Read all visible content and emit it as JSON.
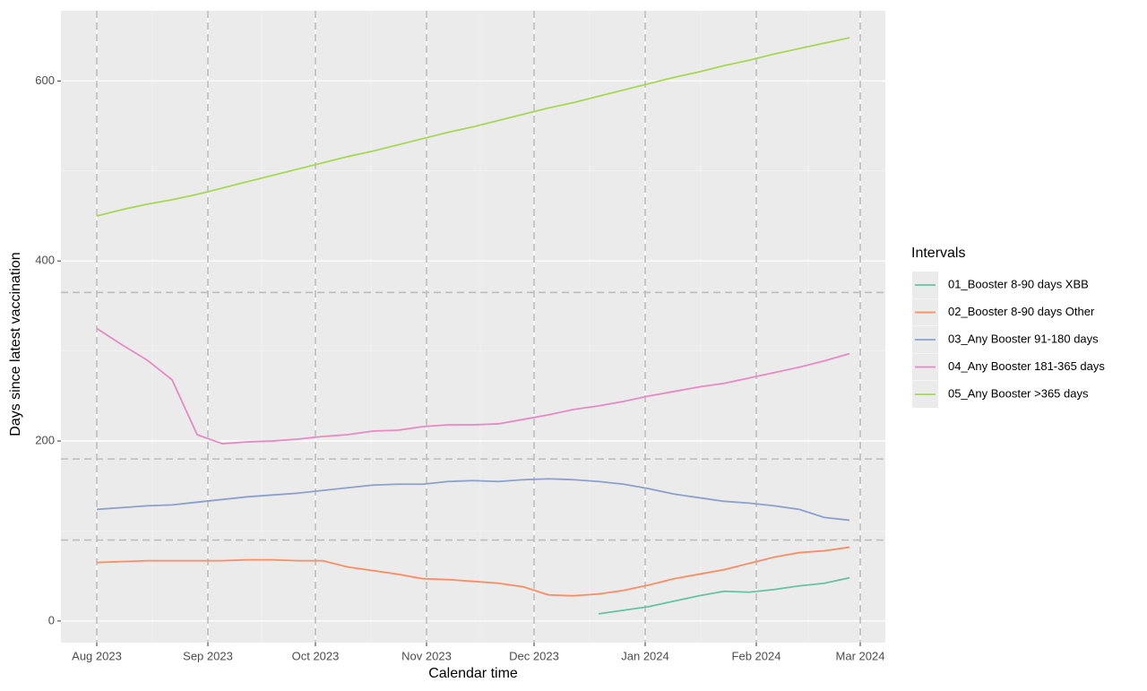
{
  "chart_data": {
    "type": "line",
    "x_label": "Calendar time",
    "y_label": "Days since latest vaccination",
    "legend_title": "Intervals",
    "legend_position": "right",
    "grid": true,
    "xlim": [
      "2023-07-22",
      "2024-03-08"
    ],
    "ylim": [
      -24,
      678
    ],
    "xticks": [
      {
        "value": "2023-08-01",
        "label": "Aug 2023"
      },
      {
        "value": "2023-09-01",
        "label": "Sep 2023"
      },
      {
        "value": "2023-10-01",
        "label": "Oct 2023"
      },
      {
        "value": "2023-11-01",
        "label": "Nov 2023"
      },
      {
        "value": "2023-12-01",
        "label": "Dec 2023"
      },
      {
        "value": "2024-01-01",
        "label": "Jan 2024"
      },
      {
        "value": "2024-02-01",
        "label": "Feb 2024"
      },
      {
        "value": "2024-03-01",
        "label": "Mar 2024"
      }
    ],
    "yticks": [
      0,
      200,
      400,
      600
    ],
    "hlines": [
      90,
      180,
      365
    ],
    "vlines": [
      "2023-08-01",
      "2023-09-01",
      "2023-10-01",
      "2023-11-01",
      "2023-12-01",
      "2024-01-01",
      "2024-02-01",
      "2024-03-01"
    ],
    "x": [
      "2023-08-01",
      "2023-08-08",
      "2023-08-15",
      "2023-08-22",
      "2023-08-29",
      "2023-09-05",
      "2023-09-12",
      "2023-09-19",
      "2023-09-26",
      "2023-10-03",
      "2023-10-10",
      "2023-10-17",
      "2023-10-24",
      "2023-10-31",
      "2023-11-07",
      "2023-11-14",
      "2023-11-21",
      "2023-11-28",
      "2023-12-05",
      "2023-12-12",
      "2023-12-19",
      "2023-12-26",
      "2024-01-02",
      "2024-01-09",
      "2024-01-16",
      "2024-01-23",
      "2024-01-30",
      "2024-02-06",
      "2024-02-13",
      "2024-02-20",
      "2024-02-27"
    ],
    "series": [
      {
        "name": "01_Booster 8-90 days XBB",
        "color": "#66c2a5",
        "values": [
          null,
          null,
          null,
          null,
          null,
          null,
          null,
          null,
          null,
          null,
          null,
          null,
          null,
          null,
          null,
          null,
          null,
          null,
          null,
          null,
          8,
          12,
          16,
          22,
          28,
          33,
          32,
          35,
          39,
          42,
          48
        ]
      },
      {
        "name": "02_Booster 8-90 days Other",
        "color": "#fc8d62",
        "values": [
          65,
          66,
          67,
          67,
          67,
          67,
          68,
          68,
          67,
          67,
          60,
          56,
          52,
          47,
          46,
          44,
          42,
          38,
          29,
          28,
          30,
          34,
          40,
          47,
          52,
          57,
          64,
          71,
          76,
          78,
          82
        ]
      },
      {
        "name": "03_Any Booster 91-180 days",
        "color": "#8da0cb",
        "values": [
          124,
          126,
          128,
          129,
          132,
          135,
          138,
          140,
          142,
          145,
          148,
          151,
          152,
          152,
          155,
          156,
          155,
          157,
          158,
          157,
          155,
          152,
          147,
          141,
          137,
          133,
          131,
          128,
          124,
          115,
          112
        ]
      },
      {
        "name": "04_Any Booster 181-365 days",
        "color": "#e78ac3",
        "values": [
          325,
          307,
          290,
          268,
          207,
          197,
          199,
          200,
          202,
          205,
          207,
          211,
          212,
          216,
          218,
          218,
          219,
          224,
          229,
          235,
          239,
          244,
          250,
          255,
          260,
          264,
          270,
          276,
          282,
          289,
          297
        ]
      },
      {
        "name": "05_Any Booster >365 days",
        "color": "#a6d854",
        "values": [
          450,
          457,
          463,
          468,
          474,
          481,
          488,
          495,
          502,
          509,
          516,
          522,
          529,
          536,
          543,
          549,
          556,
          563,
          570,
          576,
          583,
          590,
          597,
          604,
          610,
          617,
          623,
          630,
          636,
          642,
          648
        ]
      }
    ]
  }
}
